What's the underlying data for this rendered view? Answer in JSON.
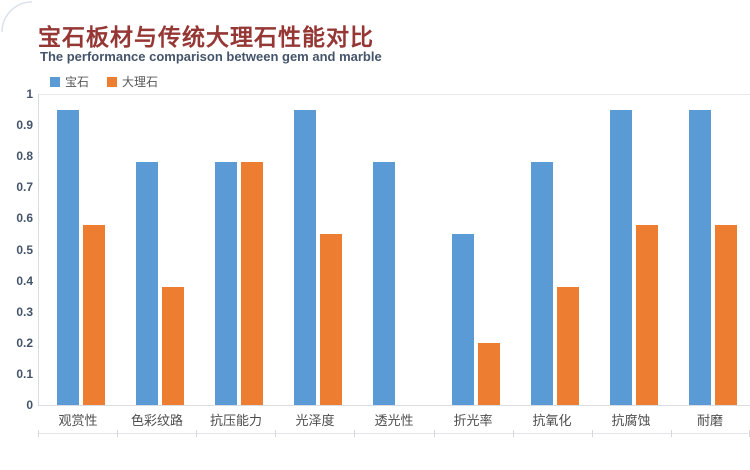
{
  "chart": {
    "title": "宝石板材与传统大理石性能对比",
    "subtitle": "The performance comparison between gem and marble"
  },
  "chart_data": {
    "type": "bar",
    "title": "宝石板材与传统大理石性能对比",
    "subtitle": "The performance comparison between gem and marble",
    "categories": [
      "观赏性",
      "色彩纹路",
      "抗压能力",
      "光泽度",
      "透光性",
      "折光率",
      "抗氧化",
      "抗腐蚀",
      "耐磨"
    ],
    "series": [
      {
        "name": "宝石",
        "color": "#5B9BD5",
        "values": [
          0.95,
          0.78,
          0.78,
          0.95,
          0.78,
          0.55,
          0.78,
          0.95,
          0.95
        ]
      },
      {
        "name": "大理石",
        "color": "#ED7D31",
        "values": [
          0.58,
          0.38,
          0.78,
          0.55,
          null,
          0.2,
          0.38,
          0.58,
          0.58
        ]
      }
    ],
    "ylim": [
      0,
      1
    ],
    "ytick_step": 0.1,
    "ytick_labels": [
      "0",
      "0.1",
      "0.2",
      "0.3",
      "0.4",
      "0.5",
      "0.6",
      "0.7",
      "0.8",
      "0.9",
      "1"
    ],
    "xlabel": "",
    "ylabel": "",
    "grid": false,
    "legend_position": "top-left"
  },
  "colors": {
    "title_text": "#953735",
    "subtitle_text": "#44546A",
    "ytick_text": "#44546A",
    "xcat_text": "#4D4D4D",
    "legend_text": "#595959",
    "axis_line": "#D9DDE3",
    "series_gem": "#5B9BD5",
    "series_marble": "#ED7D31"
  }
}
